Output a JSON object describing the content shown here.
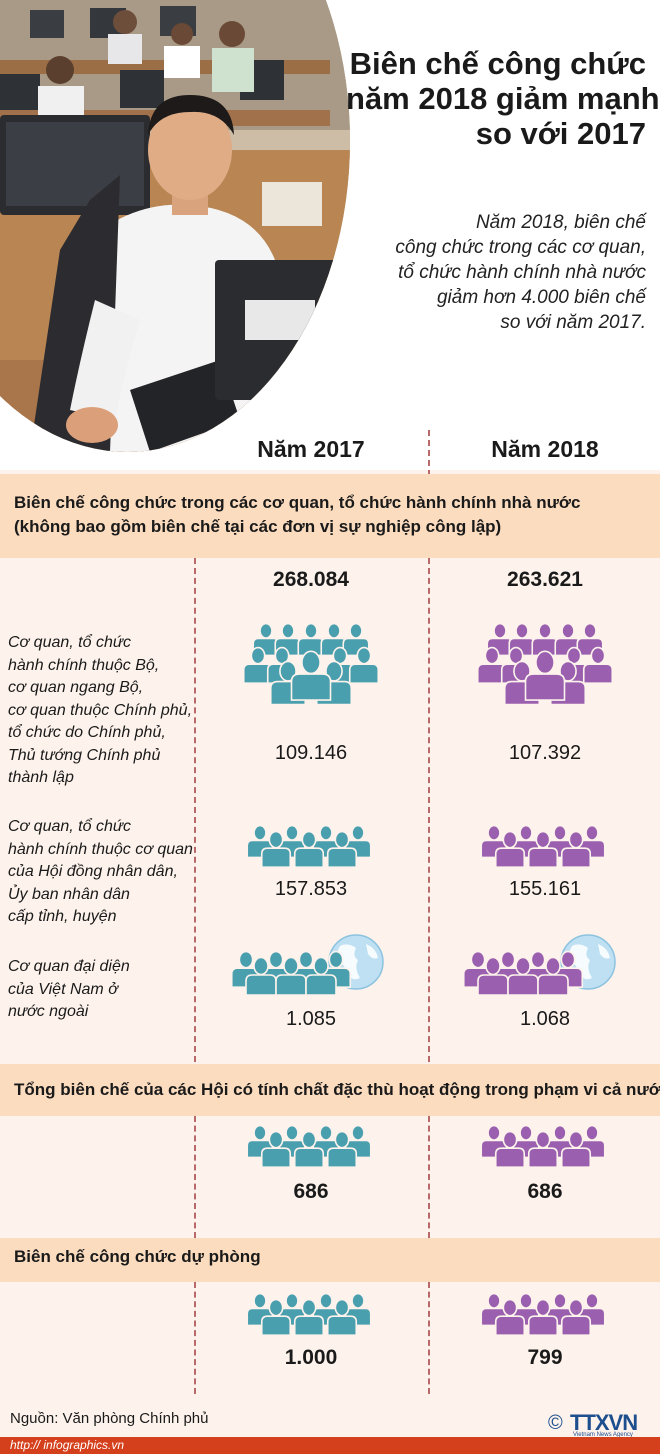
{
  "header": {
    "title_lines": [
      "Biên chế công chức",
      "năm 2018 giảm mạnh",
      "so với 2017"
    ],
    "intro_lines": [
      "Năm 2018, biên chế",
      "công chức trong các cơ quan,",
      "tổ chức hành chính nhà nước",
      "giảm hơn 4.000 biên chế",
      "so với năm 2017."
    ]
  },
  "years": [
    "Năm 2017",
    "Năm 2018"
  ],
  "sections": [
    {
      "heading_lines": [
        "Biên chế công chức trong các cơ quan, tổ chức hành chính nhà nước",
        "(không bao gồm biên chế tại các đơn vị sự nghiệp công lập)"
      ],
      "totals": [
        "268.084",
        "263.621"
      ],
      "rows": [
        {
          "label_lines": [
            "Cơ quan, tổ chức",
            "hành chính thuộc Bộ,",
            "cơ quan ngang Bộ,",
            "cơ quan thuộc Chính phủ,",
            "tổ chức do Chính phủ,",
            "Thủ tướng Chính phủ",
            "thành lập"
          ],
          "values": [
            "109.146",
            "107.392"
          ]
        },
        {
          "label_lines": [
            "Cơ quan, tổ chức",
            "hành chính thuộc cơ quan",
            "của Hội đồng nhân dân,",
            "Ủy ban nhân dân",
            "cấp tỉnh, huyện"
          ],
          "values": [
            "157.853",
            "155.161"
          ]
        },
        {
          "label_lines": [
            "Cơ quan đại diện",
            "của Việt Nam ở",
            "nước ngoài"
          ],
          "values": [
            "1.085",
            "1.068"
          ]
        }
      ]
    },
    {
      "heading_lines": [
        "Tổng biên chế của các Hội có tính chất đặc thù hoạt động trong phạm vi cả nước"
      ],
      "values": [
        "686",
        "686"
      ]
    },
    {
      "heading_lines": [
        "Biên chế công chức dự phòng"
      ],
      "values": [
        "1.000",
        "799"
      ]
    }
  ],
  "footer": {
    "source": "Nguồn: Văn phòng Chính phủ",
    "site": "http:// infographics.vn",
    "logo_symbol": "©",
    "logo_text": "TTXVN",
    "logo_sub": "Vietnam News Agency"
  },
  "colors": {
    "teal": "#4a9fae",
    "purple": "#9a5fae",
    "band": "#fbdcbf",
    "background": "#fdf3ec",
    "footer": "#d5401c"
  },
  "icons": [
    "crowd-icon",
    "people-group-icon",
    "globe-icon",
    "photo-office-workers"
  ]
}
